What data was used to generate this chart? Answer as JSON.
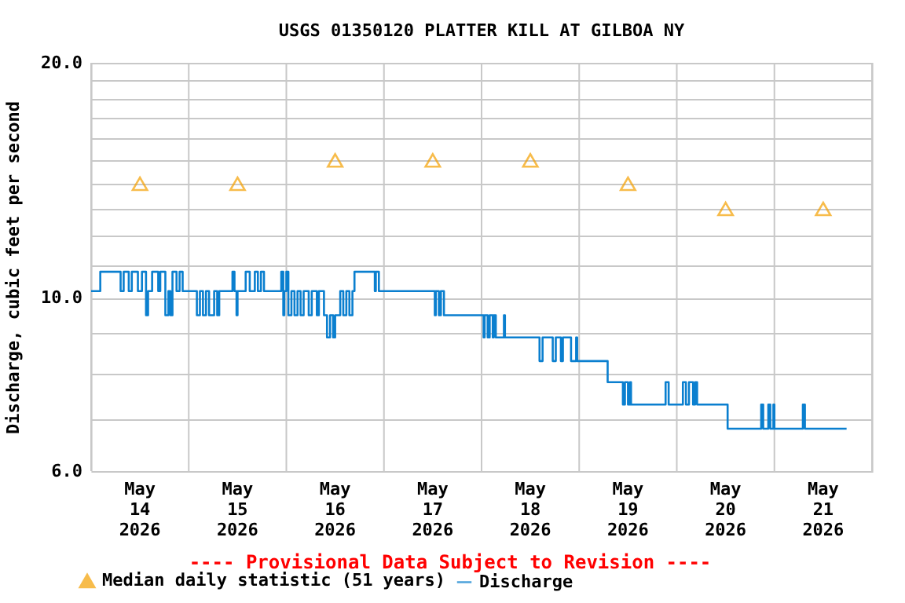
{
  "chart_data": {
    "type": "step",
    "title": "USGS 01350120 PLATTER KILL AT GILBOA NY",
    "ylabel": "Discharge, cubic feet per second",
    "log": "y",
    "grid": true,
    "legend": "bottom",
    "annotations": [
      "---- Provisional Data Subject to Revision ----"
    ],
    "xlim": [
      "2026-05-14T00:00",
      "2026-05-22T00:00"
    ],
    "xticks": [
      {
        "value": "2026-05-14T00:00",
        "label": null
      },
      {
        "value": "2026-05-14T12:00",
        "label": "May\n14\n2026"
      },
      {
        "value": "2026-05-15T00:00",
        "label": null
      },
      {
        "value": "2026-05-15T12:00",
        "label": "May\n15\n2026"
      },
      {
        "value": "2026-05-16T00:00",
        "label": null
      },
      {
        "value": "2026-05-16T12:00",
        "label": "May\n16\n2026"
      },
      {
        "value": "2026-05-17T00:00",
        "label": null
      },
      {
        "value": "2026-05-17T12:00",
        "label": "May\n17\n2026"
      },
      {
        "value": "2026-05-18T00:00",
        "label": null
      },
      {
        "value": "2026-05-18T12:00",
        "label": "May\n18\n2026"
      },
      {
        "value": "2026-05-19T00:00",
        "label": null
      },
      {
        "value": "2026-05-19T12:00",
        "label": "May\n19\n2026"
      },
      {
        "value": "2026-05-20T00:00",
        "label": null
      },
      {
        "value": "2026-05-20T12:00",
        "label": "May\n20\n2026"
      },
      {
        "value": "2026-05-21T00:00",
        "label": null
      },
      {
        "value": "2026-05-21T12:00",
        "label": "May\n21\n2026"
      },
      {
        "value": "2026-05-22T00:00",
        "label": null
      }
    ],
    "ylim": [
      6,
      20
    ],
    "yticks": [
      {
        "value": 6,
        "label": "6.0"
      },
      {
        "value": 7,
        "label": null
      },
      {
        "value": 8,
        "label": null
      },
      {
        "value": 9,
        "label": null
      },
      {
        "value": 10,
        "label": "10.0"
      },
      {
        "value": 11,
        "label": null
      },
      {
        "value": 12,
        "label": null
      },
      {
        "value": 13,
        "label": null
      },
      {
        "value": 14,
        "label": null
      },
      {
        "value": 15,
        "label": null
      },
      {
        "value": 16,
        "label": null
      },
      {
        "value": 17,
        "label": null
      },
      {
        "value": 18,
        "label": null
      },
      {
        "value": 19,
        "label": null
      },
      {
        "value": 20,
        "label": "20.0"
      }
    ],
    "series": [
      {
        "name": "Median daily statistic (51 years)",
        "type": "scatter",
        "marker": "triangle",
        "color": "#f5a000",
        "x": [
          "2026-05-14T12:00",
          "2026-05-15T12:00",
          "2026-05-16T12:00",
          "2026-05-17T12:00",
          "2026-05-18T12:00",
          "2026-05-19T12:00",
          "2026-05-20T12:00",
          "2026-05-21T12:00"
        ],
        "values": [
          14,
          14,
          15,
          15,
          15,
          14,
          13,
          13
        ]
      },
      {
        "name": "Discharge",
        "color": "#0a7fcf",
        "x": [
          "2026-05-14T00:00",
          "2026-05-14T02:15",
          "2026-05-14T07:15",
          "2026-05-14T08:00",
          "2026-05-14T09:15",
          "2026-05-14T10:00",
          "2026-05-14T11:30",
          "2026-05-14T12:30",
          "2026-05-14T13:30",
          "2026-05-14T14:00",
          "2026-05-14T15:00",
          "2026-05-14T16:30",
          "2026-05-14T17:00",
          "2026-05-14T18:15",
          "2026-05-14T19:00",
          "2026-05-14T19:30",
          "2026-05-14T20:00",
          "2026-05-14T21:00",
          "2026-05-14T21:45",
          "2026-05-14T22:30",
          "2026-05-15T02:00",
          "2026-05-15T02:45",
          "2026-05-15T03:30",
          "2026-05-15T04:15",
          "2026-05-15T05:00",
          "2026-05-15T06:15",
          "2026-05-15T07:00",
          "2026-05-15T07:30",
          "2026-05-15T10:45",
          "2026-05-15T11:15",
          "2026-05-15T11:45",
          "2026-05-15T12:00",
          "2026-05-15T14:00",
          "2026-05-15T15:00",
          "2026-05-15T16:15",
          "2026-05-15T17:00",
          "2026-05-15T17:45",
          "2026-05-15T18:30",
          "2026-05-15T22:45",
          "2026-05-15T23:15",
          "2026-05-15T23:30",
          "2026-05-16T00:00",
          "2026-05-16T00:30",
          "2026-05-16T01:15",
          "2026-05-16T02:00",
          "2026-05-16T02:45",
          "2026-05-16T03:30",
          "2026-05-16T04:15",
          "2026-05-16T05:30",
          "2026-05-16T06:15",
          "2026-05-16T07:30",
          "2026-05-16T08:00",
          "2026-05-16T09:15",
          "2026-05-16T10:00",
          "2026-05-16T10:45",
          "2026-05-16T11:30",
          "2026-05-16T12:00",
          "2026-05-16T13:15",
          "2026-05-16T14:00",
          "2026-05-16T14:45",
          "2026-05-16T15:30",
          "2026-05-16T16:15",
          "2026-05-16T16:45",
          "2026-05-16T21:45",
          "2026-05-16T22:00",
          "2026-05-16T22:45",
          "2026-05-17T12:30",
          "2026-05-17T12:45",
          "2026-05-17T13:30",
          "2026-05-17T14:00",
          "2026-05-17T14:45",
          "2026-05-18T00:30",
          "2026-05-18T00:45",
          "2026-05-18T01:30",
          "2026-05-18T02:00",
          "2026-05-18T02:45",
          "2026-05-18T03:00",
          "2026-05-18T03:30",
          "2026-05-18T05:30",
          "2026-05-18T05:45",
          "2026-05-18T14:15",
          "2026-05-18T15:00",
          "2026-05-18T17:30",
          "2026-05-18T18:15",
          "2026-05-18T19:30",
          "2026-05-18T20:00",
          "2026-05-18T22:00",
          "2026-05-18T23:15",
          "2026-05-18T23:30",
          "2026-05-19T07:00",
          "2026-05-19T10:45",
          "2026-05-19T11:15",
          "2026-05-19T12:00",
          "2026-05-19T12:30",
          "2026-05-19T12:45",
          "2026-05-19T21:15",
          "2026-05-19T22:00",
          "2026-05-20T01:30",
          "2026-05-20T02:15",
          "2026-05-20T03:00",
          "2026-05-20T04:00",
          "2026-05-20T04:30",
          "2026-05-20T05:00",
          "2026-05-20T12:30",
          "2026-05-20T20:45",
          "2026-05-20T21:15",
          "2026-05-20T22:30",
          "2026-05-20T23:00",
          "2026-05-20T23:45",
          "2026-05-21T00:00",
          "2026-05-21T07:00",
          "2026-05-21T07:30",
          "2026-05-21T17:45"
        ],
        "values": [
          10.2,
          10.8,
          10.2,
          10.8,
          10.2,
          10.8,
          10.2,
          10.8,
          9.5,
          10.2,
          10.8,
          10.2,
          10.8,
          9.5,
          10.2,
          9.5,
          10.8,
          10.2,
          10.8,
          10.2,
          9.5,
          10.2,
          9.5,
          10.2,
          9.5,
          10.2,
          9.5,
          10.2,
          10.8,
          10.2,
          9.5,
          10.2,
          10.8,
          10.2,
          10.8,
          10.2,
          10.8,
          10.2,
          10.8,
          9.5,
          10.2,
          10.8,
          9.5,
          10.2,
          9.5,
          10.2,
          9.5,
          10.2,
          9.5,
          10.2,
          9.5,
          10.2,
          9.5,
          8.9,
          9.5,
          8.9,
          9.5,
          10.2,
          9.5,
          10.2,
          9.5,
          10.2,
          10.8,
          10.2,
          10.8,
          10.2,
          9.5,
          10.2,
          9.5,
          10.2,
          9.5,
          8.9,
          9.5,
          8.9,
          9.5,
          8.9,
          9.5,
          8.9,
          9.5,
          8.9,
          8.3,
          8.9,
          8.3,
          8.9,
          8.3,
          8.9,
          8.3,
          8.9,
          8.3,
          7.8,
          7.3,
          7.8,
          7.3,
          7.8,
          7.3,
          7.8,
          7.3,
          7.8,
          7.3,
          7.8,
          7.3,
          7.8,
          7.3,
          6.8,
          7.3,
          6.8,
          7.3,
          6.8,
          7.3,
          6.8,
          7.3,
          6.8,
          6.8
        ]
      }
    ]
  }
}
